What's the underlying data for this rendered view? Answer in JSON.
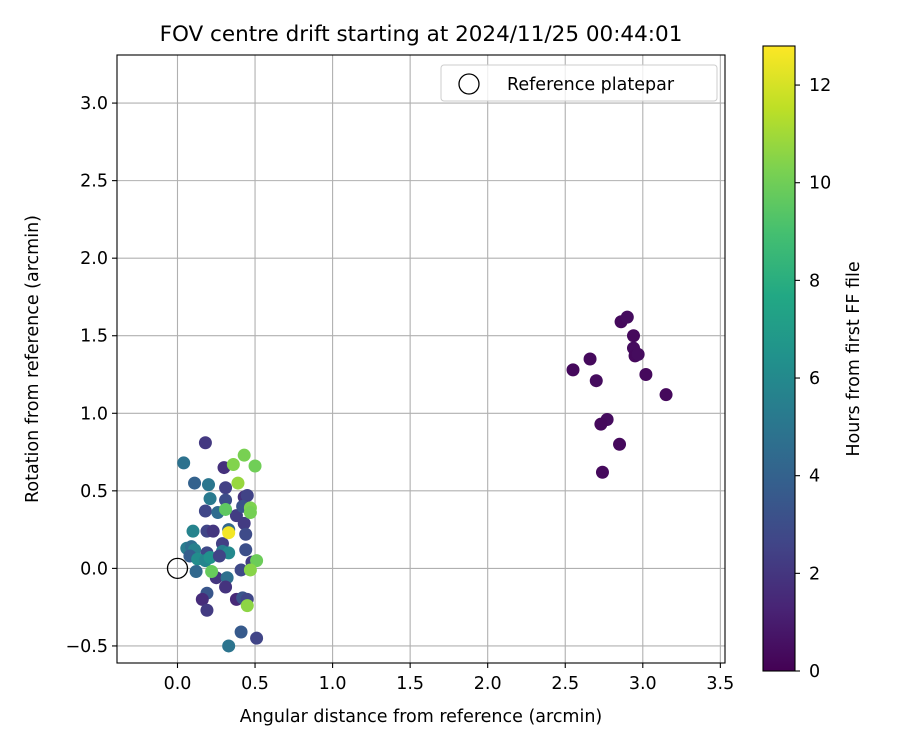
{
  "chart_data": {
    "type": "scatter",
    "title": "FOV centre drift starting at 2024/11/25 00:44:01",
    "xlabel": "Angular distance from reference (arcmin)",
    "ylabel": "Rotation from reference (arcmin)",
    "xlim": [
      -0.39,
      3.53
    ],
    "ylim": [
      -0.61,
      3.31
    ],
    "x_ticks": [
      0.0,
      0.5,
      1.0,
      1.5,
      2.0,
      2.5,
      3.0,
      3.5
    ],
    "x_tick_labels": [
      "0.0",
      "0.5",
      "1.0",
      "1.5",
      "2.0",
      "2.5",
      "3.0",
      "3.5"
    ],
    "y_ticks": [
      -0.5,
      0.0,
      0.5,
      1.0,
      1.5,
      2.0,
      2.5,
      3.0
    ],
    "y_tick_labels": [
      "−0.5",
      "0.0",
      "0.5",
      "1.0",
      "1.5",
      "2.0",
      "2.5",
      "3.0"
    ],
    "grid": true,
    "legend": {
      "position": "top-right",
      "entries": [
        {
          "label": "Reference platepar",
          "marker": "open-circle",
          "x": 0.0,
          "y": 0.0
        }
      ]
    },
    "colorbar": {
      "label": "Hours from first FF file",
      "colormap": "viridis",
      "range": [
        0,
        12.8
      ],
      "ticks": [
        0,
        2,
        4,
        6,
        8,
        10,
        12
      ],
      "tick_labels": [
        "0",
        "2",
        "4",
        "6",
        "8",
        "10",
        "12"
      ]
    },
    "points": [
      {
        "x": 2.55,
        "y": 1.28,
        "h": 0.3
      },
      {
        "x": 2.66,
        "y": 1.35,
        "h": 0.3
      },
      {
        "x": 2.7,
        "y": 1.21,
        "h": 0.4
      },
      {
        "x": 2.86,
        "y": 1.59,
        "h": 0.3
      },
      {
        "x": 2.9,
        "y": 1.62,
        "h": 0.4
      },
      {
        "x": 2.94,
        "y": 1.5,
        "h": 0.3
      },
      {
        "x": 2.94,
        "y": 1.42,
        "h": 0.4
      },
      {
        "x": 2.95,
        "y": 1.37,
        "h": 0.3
      },
      {
        "x": 2.97,
        "y": 1.38,
        "h": 0.4
      },
      {
        "x": 3.02,
        "y": 1.25,
        "h": 0.3
      },
      {
        "x": 3.15,
        "y": 1.12,
        "h": 0.3
      },
      {
        "x": 2.77,
        "y": 0.96,
        "h": 0.4
      },
      {
        "x": 2.73,
        "y": 0.93,
        "h": 0.3
      },
      {
        "x": 2.85,
        "y": 0.8,
        "h": 0.3
      },
      {
        "x": 2.74,
        "y": 0.62,
        "h": 0.3
      },
      {
        "x": 0.04,
        "y": 0.68,
        "h": 4.8
      },
      {
        "x": 0.18,
        "y": 0.81,
        "h": 2.1
      },
      {
        "x": 0.3,
        "y": 0.65,
        "h": 1.8
      },
      {
        "x": 0.11,
        "y": 0.55,
        "h": 4.0
      },
      {
        "x": 0.2,
        "y": 0.54,
        "h": 5.0
      },
      {
        "x": 0.31,
        "y": 0.52,
        "h": 2.4
      },
      {
        "x": 0.21,
        "y": 0.45,
        "h": 5.2
      },
      {
        "x": 0.31,
        "y": 0.44,
        "h": 3.0
      },
      {
        "x": 0.43,
        "y": 0.46,
        "h": 1.8
      },
      {
        "x": 0.45,
        "y": 0.47,
        "h": 2.5
      },
      {
        "x": 0.18,
        "y": 0.37,
        "h": 2.7
      },
      {
        "x": 0.26,
        "y": 0.36,
        "h": 4.5
      },
      {
        "x": 0.38,
        "y": 0.34,
        "h": 2.3
      },
      {
        "x": 0.42,
        "y": 0.4,
        "h": 3.2
      },
      {
        "x": 0.43,
        "y": 0.29,
        "h": 2.2
      },
      {
        "x": 0.1,
        "y": 0.24,
        "h": 5.7
      },
      {
        "x": 0.19,
        "y": 0.24,
        "h": 2.6
      },
      {
        "x": 0.23,
        "y": 0.24,
        "h": 2.0
      },
      {
        "x": 0.33,
        "y": 0.25,
        "h": 4.2
      },
      {
        "x": 0.44,
        "y": 0.22,
        "h": 2.9
      },
      {
        "x": 0.29,
        "y": 0.16,
        "h": 2.4
      },
      {
        "x": 0.06,
        "y": 0.13,
        "h": 5.3
      },
      {
        "x": 0.09,
        "y": 0.14,
        "h": 4.6
      },
      {
        "x": 0.11,
        "y": 0.12,
        "h": 5.6
      },
      {
        "x": 0.19,
        "y": 0.1,
        "h": 2.8
      },
      {
        "x": 0.29,
        "y": 0.11,
        "h": 5.4
      },
      {
        "x": 0.33,
        "y": 0.1,
        "h": 6.0
      },
      {
        "x": 0.44,
        "y": 0.12,
        "h": 3.1
      },
      {
        "x": 0.08,
        "y": 0.08,
        "h": 3.8
      },
      {
        "x": 0.13,
        "y": 0.06,
        "h": 6.2
      },
      {
        "x": 0.18,
        "y": 0.05,
        "h": 5.8
      },
      {
        "x": 0.21,
        "y": 0.07,
        "h": 6.4
      },
      {
        "x": 0.27,
        "y": 0.08,
        "h": 2.5
      },
      {
        "x": 0.48,
        "y": 0.04,
        "h": 2.3
      },
      {
        "x": 0.12,
        "y": -0.02,
        "h": 4.3
      },
      {
        "x": 0.25,
        "y": -0.06,
        "h": 2.0
      },
      {
        "x": 0.32,
        "y": -0.06,
        "h": 4.7
      },
      {
        "x": 0.41,
        "y": -0.01,
        "h": 2.8
      },
      {
        "x": 0.31,
        "y": -0.12,
        "h": 1.9
      },
      {
        "x": 0.19,
        "y": -0.16,
        "h": 3.4
      },
      {
        "x": 0.16,
        "y": -0.2,
        "h": 1.6
      },
      {
        "x": 0.38,
        "y": -0.2,
        "h": 1.5
      },
      {
        "x": 0.42,
        "y": -0.19,
        "h": 3.3
      },
      {
        "x": 0.45,
        "y": -0.2,
        "h": 2.7
      },
      {
        "x": 0.19,
        "y": -0.27,
        "h": 2.2
      },
      {
        "x": 0.41,
        "y": -0.41,
        "h": 3.6
      },
      {
        "x": 0.51,
        "y": -0.45,
        "h": 2.6
      },
      {
        "x": 0.33,
        "y": -0.5,
        "h": 4.9
      },
      {
        "x": 0.43,
        "y": 0.73,
        "h": 10.2
      },
      {
        "x": 0.36,
        "y": 0.67,
        "h": 10.4
      },
      {
        "x": 0.5,
        "y": 0.66,
        "h": 10.0
      },
      {
        "x": 0.39,
        "y": 0.55,
        "h": 10.8
      },
      {
        "x": 0.47,
        "y": 0.39,
        "h": 10.3
      },
      {
        "x": 0.47,
        "y": 0.36,
        "h": 10.1
      },
      {
        "x": 0.31,
        "y": 0.38,
        "h": 9.6
      },
      {
        "x": 0.33,
        "y": 0.23,
        "h": 12.6
      },
      {
        "x": 0.51,
        "y": 0.05,
        "h": 9.9
      },
      {
        "x": 0.47,
        "y": -0.01,
        "h": 10.5
      },
      {
        "x": 0.22,
        "y": -0.02,
        "h": 9.8
      },
      {
        "x": 0.45,
        "y": -0.24,
        "h": 10.6
      }
    ]
  }
}
